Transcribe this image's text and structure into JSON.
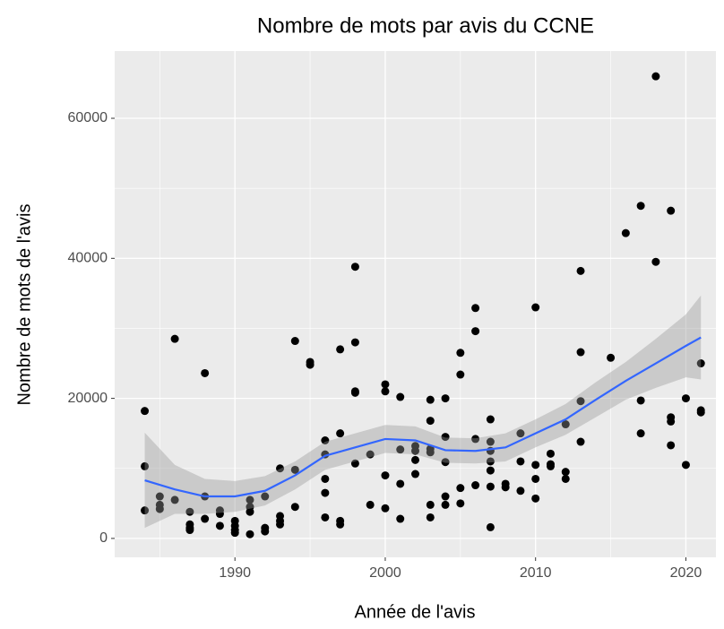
{
  "chart_data": {
    "type": "scatter",
    "title": "Nombre de mots par avis du CCNE",
    "x_label": "Année de l'avis",
    "y_label": "Nombre de mots de l'avis",
    "xlim": [
      1982.0,
      2022.0
    ],
    "ylim": [
      -2700,
      69600
    ],
    "xticks": [
      1990,
      2000,
      2010,
      2020
    ],
    "yticks": [
      0,
      20000,
      40000,
      60000
    ],
    "grid": true,
    "series": [
      {
        "color": "#000000",
        "x": [
          1984,
          1984,
          1984,
          1985,
          1985,
          1985,
          1986,
          1986,
          1987,
          1987,
          1987,
          1987,
          1988,
          1988,
          1988,
          1989,
          1989,
          1989,
          1990,
          1990,
          1990,
          1990,
          1991,
          1991,
          1991,
          1991,
          1992,
          1992,
          1992,
          1993,
          1993,
          1993,
          1993,
          1994,
          1994,
          1994,
          1995,
          1995,
          1996,
          1996,
          1996,
          1996,
          1996,
          1997,
          1997,
          1997,
          1997,
          1998,
          1998,
          1998,
          1998,
          1998,
          1999,
          1999,
          2000,
          2000,
          2000,
          2000,
          2001,
          2001,
          2001,
          2001,
          2002,
          2002,
          2002,
          2002,
          2003,
          2003,
          2003,
          2003,
          2003,
          2003,
          2004,
          2004,
          2004,
          2004,
          2004,
          2005,
          2005,
          2005,
          2005,
          2006,
          2006,
          2006,
          2006,
          2007,
          2007,
          2007,
          2007,
          2007,
          2007,
          2007,
          2008,
          2008,
          2009,
          2009,
          2009,
          2010,
          2010,
          2010,
          2010,
          2011,
          2011,
          2011,
          2012,
          2012,
          2012,
          2013,
          2013,
          2013,
          2013,
          2015,
          2016,
          2017,
          2017,
          2017,
          2018,
          2018,
          2019,
          2019,
          2019,
          2019,
          2020,
          2020,
          2021,
          2021,
          2021
        ],
        "values": [
          18200,
          10300,
          4000,
          6000,
          4800,
          4200,
          28500,
          5500,
          3800,
          2000,
          1500,
          1200,
          23600,
          6000,
          2800,
          4000,
          3500,
          1800,
          2500,
          1800,
          1200,
          800,
          5500,
          4500,
          3800,
          600,
          6000,
          1500,
          1000,
          10000,
          3200,
          2500,
          2000,
          28200,
          9800,
          4500,
          25200,
          24800,
          14000,
          12000,
          8500,
          6500,
          3000,
          27000,
          15000,
          2500,
          2000,
          38800,
          28000,
          21000,
          20800,
          10700,
          12000,
          4800,
          22000,
          21000,
          9000,
          4300,
          20200,
          12700,
          7800,
          2800,
          13200,
          12500,
          11200,
          9200,
          19800,
          16800,
          12800,
          12300,
          4800,
          3000,
          20000,
          14500,
          10900,
          6000,
          4800,
          26500,
          23400,
          7200,
          5000,
          32900,
          29600,
          14200,
          7600,
          17000,
          13800,
          12500,
          11000,
          9700,
          7400,
          1600,
          7800,
          7300,
          15000,
          11000,
          6800,
          33000,
          10500,
          8500,
          5700,
          12100,
          10600,
          10300,
          16300,
          9500,
          8500,
          38200,
          26600,
          19600,
          13800,
          25800,
          43600,
          47500,
          19700,
          15000,
          66000,
          39500,
          46800,
          17300,
          16700,
          13300,
          20000,
          10500,
          25000,
          18300,
          18000
        ]
      }
    ],
    "smooth": {
      "color": "#3366FF",
      "band_color": "#999999",
      "x": [
        1984,
        1986,
        1988,
        1990,
        1992,
        1994,
        1996,
        1998,
        2000,
        2002,
        2004,
        2006,
        2008,
        2010,
        2012,
        2014,
        2016,
        2018,
        2020,
        2021
      ],
      "values": [
        8300,
        7000,
        6000,
        6000,
        6800,
        9000,
        11800,
        13000,
        14200,
        14000,
        12600,
        12500,
        13000,
        15000,
        17000,
        19800,
        22500,
        25000,
        27500,
        28700
      ],
      "lower": [
        1500,
        3500,
        3500,
        3800,
        4700,
        7000,
        9800,
        11000,
        12200,
        12000,
        10800,
        10700,
        11000,
        13000,
        14800,
        17300,
        19800,
        21500,
        23000,
        22700
      ],
      "upper": [
        15100,
        10500,
        8500,
        8200,
        8900,
        11000,
        13800,
        15000,
        16200,
        16000,
        14400,
        14300,
        15000,
        17000,
        19200,
        22300,
        25200,
        28500,
        32000,
        34700
      ]
    }
  }
}
